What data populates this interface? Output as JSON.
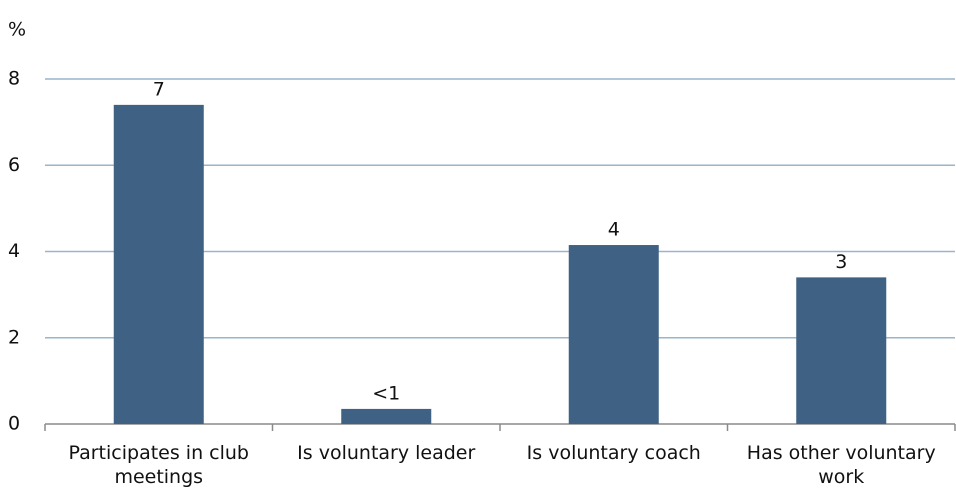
{
  "chart_data": {
    "type": "bar",
    "y_label": "%",
    "categories": [
      "Participates in club meetings",
      "Is voluntary leader",
      "Is voluntary coach",
      "Has other voluntary work"
    ],
    "values": [
      7.4,
      0.35,
      4.15,
      3.4
    ],
    "value_labels": [
      "7",
      "<1",
      "4",
      "3"
    ],
    "color": "#3f6184",
    "ylim": [
      0,
      8
    ],
    "yticks": [
      0,
      2,
      4,
      6,
      8
    ],
    "grid": true
  }
}
